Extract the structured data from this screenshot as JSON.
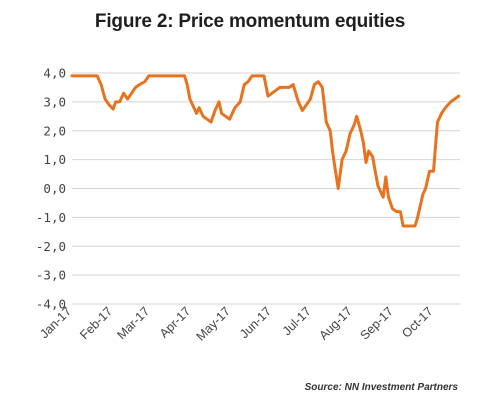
{
  "chart_data": {
    "type": "line",
    "title": "Figure 2: Price momentum equities",
    "source": "Source: NN Investment Partners",
    "ylim": [
      -4,
      4
    ],
    "yticks": [
      4,
      3,
      2,
      1,
      0,
      -1,
      -2,
      -3,
      -4
    ],
    "ytick_labels": [
      "4,0",
      "3,0",
      "2,0",
      "1,0",
      "0,0",
      "-1,0",
      "-2,0",
      "-3,0",
      "-4,0"
    ],
    "xlim": [
      "2017-01-01",
      "2017-10-21"
    ],
    "xticks": [
      "2017-01-01",
      "2017-02-01",
      "2017-03-01",
      "2017-04-01",
      "2017-05-01",
      "2017-06-01",
      "2017-07-01",
      "2017-08-01",
      "2017-09-01",
      "2017-10-01"
    ],
    "xtick_labels": [
      "Jan-17",
      "Feb-17",
      "Mar-17",
      "Apr-17",
      "May-17",
      "Jun-17",
      "Jul-17",
      "Aug-17",
      "Sep-17",
      "Oct-17"
    ],
    "grid": true,
    "line_color": "#e8731e",
    "series": [
      {
        "name": "",
        "x": [
          "2017-01-01",
          "2017-01-09",
          "2017-01-20",
          "2017-01-23",
          "2017-01-26",
          "2017-01-29",
          "2017-02-01",
          "2017-02-03",
          "2017-02-06",
          "2017-02-09",
          "2017-02-12",
          "2017-02-15",
          "2017-02-18",
          "2017-02-21",
          "2017-02-25",
          "2017-02-28",
          "2017-03-03",
          "2017-03-15",
          "2017-03-27",
          "2017-03-29",
          "2017-03-31",
          "2017-04-02",
          "2017-04-05",
          "2017-04-07",
          "2017-04-10",
          "2017-04-13",
          "2017-04-16",
          "2017-04-19",
          "2017-04-22",
          "2017-04-24",
          "2017-04-27",
          "2017-04-30",
          "2017-05-04",
          "2017-05-08",
          "2017-05-11",
          "2017-05-14",
          "2017-05-17",
          "2017-05-21",
          "2017-05-24",
          "2017-05-26",
          "2017-05-29",
          "2017-06-01",
          "2017-06-04",
          "2017-06-07",
          "2017-06-10",
          "2017-06-14",
          "2017-06-17",
          "2017-06-21",
          "2017-06-24",
          "2017-06-27",
          "2017-06-30",
          "2017-07-03",
          "2017-07-06",
          "2017-07-09",
          "2017-07-12",
          "2017-07-15",
          "2017-07-17",
          "2017-07-19",
          "2017-07-21",
          "2017-07-24",
          "2017-07-27",
          "2017-07-30",
          "2017-08-02",
          "2017-08-04",
          "2017-08-07",
          "2017-08-09",
          "2017-08-11",
          "2017-08-13",
          "2017-08-16",
          "2017-08-18",
          "2017-08-20",
          "2017-08-22",
          "2017-08-24",
          "2017-08-26",
          "2017-08-28",
          "2017-08-31",
          "2017-09-03",
          "2017-09-06",
          "2017-09-08",
          "2017-09-12",
          "2017-09-15",
          "2017-09-17",
          "2017-09-19",
          "2017-09-23",
          "2017-09-25",
          "2017-09-28",
          "2017-10-01",
          "2017-10-04",
          "2017-10-07",
          "2017-10-10",
          "2017-10-14",
          "2017-10-17",
          "2017-10-20"
        ],
        "y": [
          3.9,
          3.9,
          3.9,
          3.6,
          3.1,
          2.9,
          2.75,
          3.0,
          3.0,
          3.3,
          3.1,
          3.3,
          3.5,
          3.6,
          3.7,
          3.9,
          3.9,
          3.9,
          3.9,
          3.6,
          3.1,
          2.9,
          2.6,
          2.8,
          2.5,
          2.4,
          2.3,
          2.7,
          3.0,
          2.6,
          2.5,
          2.4,
          2.8,
          3.0,
          3.6,
          3.7,
          3.9,
          3.9,
          3.9,
          3.9,
          3.2,
          3.3,
          3.4,
          3.5,
          3.5,
          3.5,
          3.6,
          3.0,
          2.7,
          2.9,
          3.1,
          3.6,
          3.7,
          3.5,
          2.3,
          2.0,
          1.2,
          0.6,
          0.0,
          1.0,
          1.3,
          1.9,
          2.2,
          2.5,
          2.0,
          1.6,
          0.9,
          1.3,
          1.1,
          0.6,
          0.1,
          -0.1,
          -0.3,
          0.4,
          -0.3,
          -0.7,
          -0.8,
          -0.8,
          -1.3,
          -1.3,
          -1.3,
          -1.3,
          -1.0,
          -0.2,
          0.0,
          0.6,
          0.6,
          2.3,
          2.6,
          2.8,
          3.0,
          3.1,
          3.2
        ]
      }
    ]
  }
}
